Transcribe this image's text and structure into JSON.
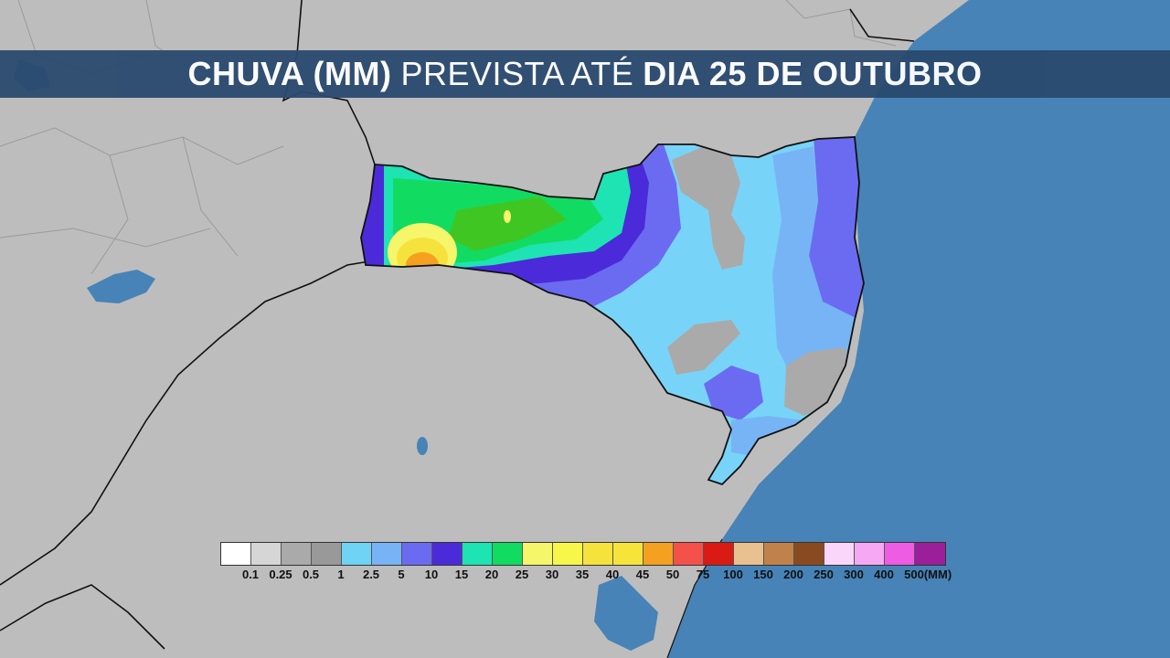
{
  "title": {
    "part1": "CHUVA (MM)",
    "part2": "PREVISTA ATÉ",
    "part3": "DIA 25 DE OUTUBRO"
  },
  "legend": {
    "colors": [
      "#ffffff",
      "#d6d6d6",
      "#aaaaaa",
      "#999999",
      "#6fd3f5",
      "#77b4f5",
      "#6b6bf2",
      "#4b2bd9",
      "#1ee3b2",
      "#12db62",
      "#f6f66a",
      "#f7f74a",
      "#f5e23c",
      "#f6e43a",
      "#f6a021",
      "#f4514a",
      "#d91b13",
      "#e9c08f",
      "#c0814a",
      "#8a4a20",
      "#fbd6fb",
      "#f7a8f4",
      "#ed5ce3",
      "#9b1e9b"
    ],
    "labels": [
      "0.1",
      "0.25",
      "0.5",
      "1",
      "2.5",
      "5",
      "10",
      "15",
      "20",
      "25",
      "30",
      "35",
      "40",
      "45",
      "50",
      "75",
      "100",
      "150",
      "200",
      "250",
      "300",
      "400",
      "500",
      "(MM)"
    ]
  },
  "colors": {
    "ocean": "#4783b7",
    "land": "#bdbdbd",
    "banner": "#2a4a6e"
  }
}
